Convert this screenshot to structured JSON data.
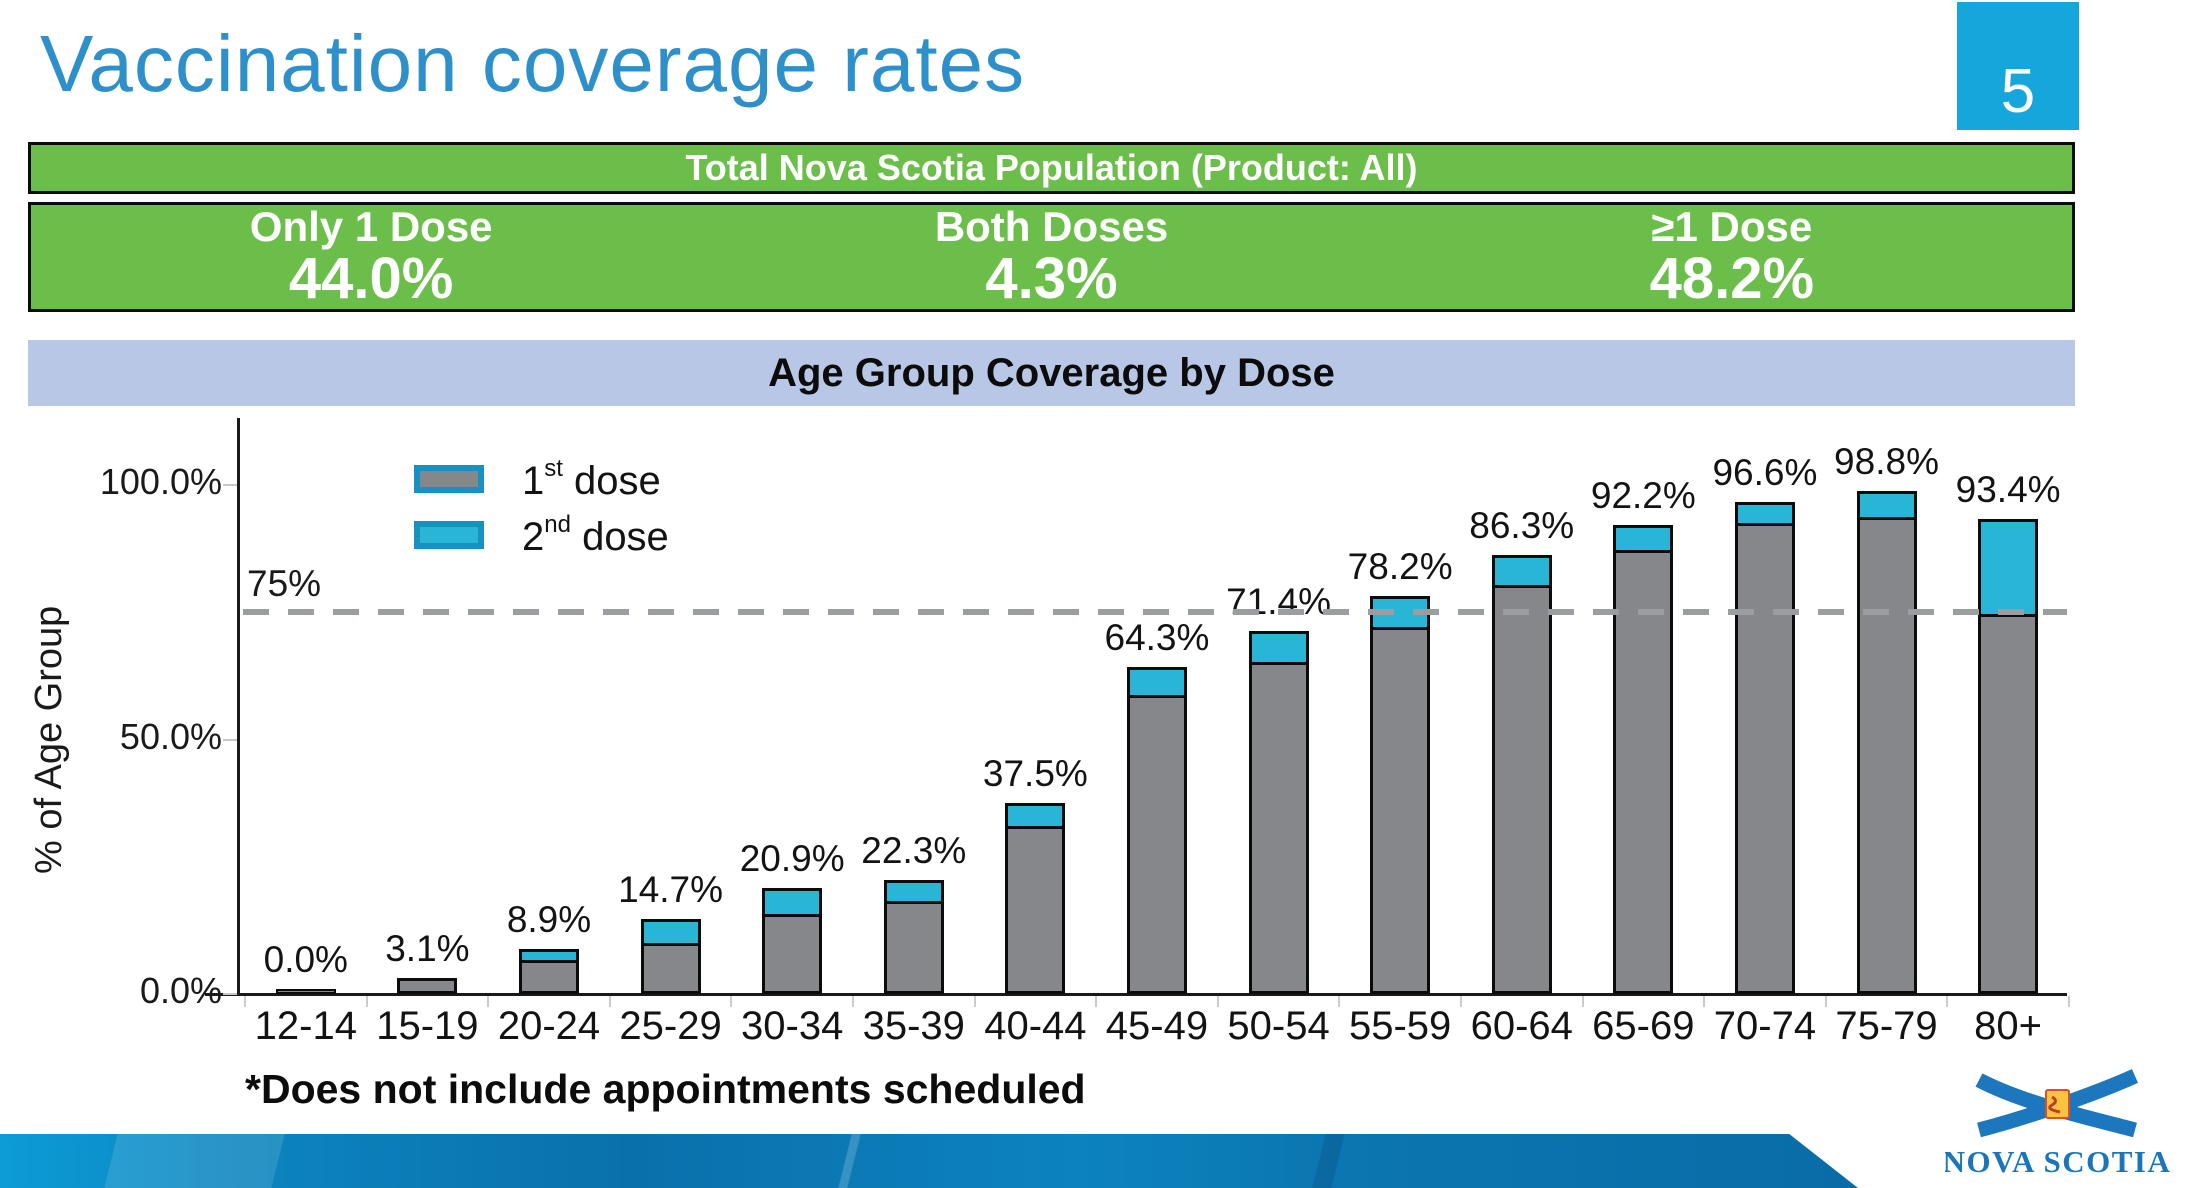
{
  "header": {
    "title": "Vaccination coverage rates",
    "page_number": "5"
  },
  "summary": {
    "banner_title": "Total Nova Scotia Population (Product: All)",
    "stats": [
      {
        "label": "Only 1 Dose",
        "value": "44.0%"
      },
      {
        "label": "Both Doses",
        "value": "4.3%"
      },
      {
        "label": "≥1 Dose",
        "value": "48.2%"
      }
    ]
  },
  "legend": {
    "items": [
      {
        "num": "1",
        "sup": "st",
        "rest": " dose"
      },
      {
        "num": "2",
        "sup": "nd",
        "rest": " dose"
      }
    ]
  },
  "footnote": "*Does not include appointments scheduled",
  "logo": {
    "text": "NOVA SCOTIA"
  },
  "colors": {
    "title_blue": "#2E90CB",
    "page_box_blue": "#15A7DC",
    "banner_green": "#6CBE4B",
    "banner_border": "#0B0B0B",
    "chart_banner_lavender": "#B9C7E6",
    "bar_first": "#85878A",
    "bar_second": "#29B6D6",
    "bar_outline": "#0C0C0D",
    "legend_swatch_border": "#1791BD",
    "ref_line": "#9B9DA0",
    "axis": "#1A1A1C",
    "logo_blue": "#1B75BB"
  },
  "chart_data": {
    "type": "bar",
    "stacked": true,
    "title": "Age Group Coverage by Dose",
    "ylabel": "% of Age Group",
    "ylim": [
      0,
      100
    ],
    "grid": false,
    "legend_position": "top-left",
    "y_ticks": [
      {
        "label": "0.0%",
        "value": 0
      },
      {
        "label": "50.0%",
        "value": 50
      },
      {
        "label": "100.0%",
        "value": 100
      }
    ],
    "reference_line": {
      "label": "75%",
      "value": 75
    },
    "categories": [
      "12-14",
      "15-19",
      "20-24",
      "25-29",
      "30-34",
      "35-39",
      "40-44",
      "45-49",
      "50-54",
      "55-59",
      "60-64",
      "65-69",
      "70-74",
      "75-79",
      "80+"
    ],
    "series": [
      {
        "name": "1st dose",
        "color_key": "bar_first",
        "values": [
          0.0,
          3.0,
          6.7,
          9.9,
          15.8,
          18.1,
          32.9,
          58.8,
          65.3,
          72.1,
          80.5,
          87.3,
          92.5,
          93.6,
          74.8
        ]
      },
      {
        "name": "2nd dose",
        "color_key": "bar_second",
        "values": [
          0.0,
          0.1,
          2.2,
          4.8,
          5.1,
          4.2,
          4.6,
          5.5,
          6.1,
          6.1,
          5.8,
          4.9,
          4.1,
          5.2,
          18.6
        ]
      }
    ],
    "total_labels": [
      "0.0%",
      "3.1%",
      "8.9%",
      "14.7%",
      "20.9%",
      "22.3%",
      "37.5%",
      "64.3%",
      "71.4%",
      "78.2%",
      "86.3%",
      "92.2%",
      "96.6%",
      "98.8%",
      "93.4%"
    ]
  }
}
